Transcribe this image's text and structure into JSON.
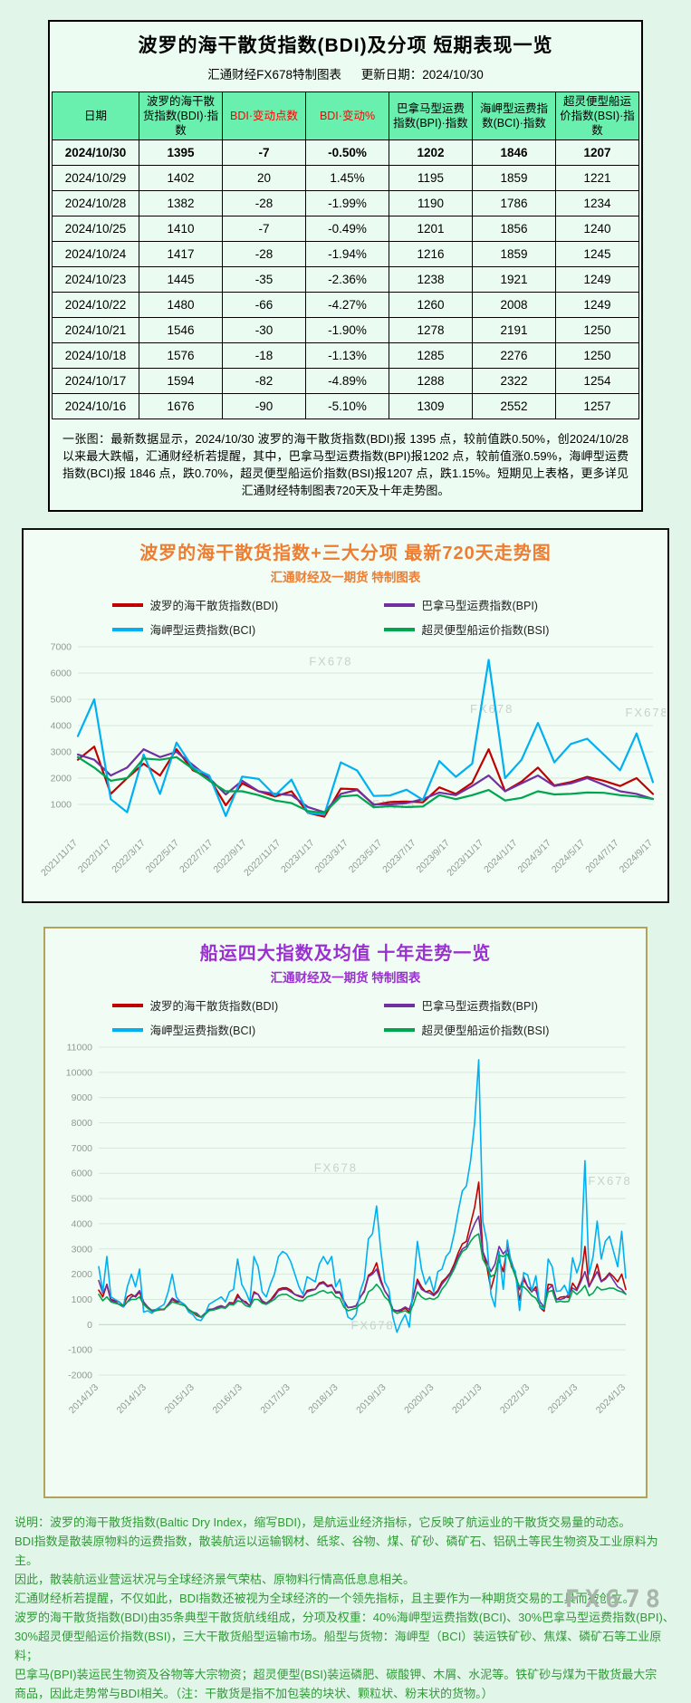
{
  "page": {
    "fx_logo": "FX678"
  },
  "table_panel": {
    "title": "波罗的海干散货指数(BDI)及分项 短期表现一览",
    "source": "汇通财经FX678特制图表",
    "updated": "更新日期：2024/10/30",
    "headers": [
      "日期",
      "波罗的海干散货指数(BDI)·指数",
      "BDI·变动点数",
      "BDI·变动%",
      "巴拿马型运费指数(BPI)·指数",
      "海岬型运费指数(BCI)·指数",
      "超灵便型船运价指数(BSI)·指数"
    ],
    "header_red_cols": [
      2,
      3
    ],
    "rows": [
      [
        "2024/10/30",
        "1395",
        "-7",
        "-0.50%",
        "1202",
        "1846",
        "1207"
      ],
      [
        "2024/10/29",
        "1402",
        "20",
        "1.45%",
        "1195",
        "1859",
        "1221"
      ],
      [
        "2024/10/28",
        "1382",
        "-28",
        "-1.99%",
        "1190",
        "1786",
        "1234"
      ],
      [
        "2024/10/25",
        "1410",
        "-7",
        "-0.49%",
        "1201",
        "1856",
        "1240"
      ],
      [
        "2024/10/24",
        "1417",
        "-28",
        "-1.94%",
        "1216",
        "1859",
        "1245"
      ],
      [
        "2024/10/23",
        "1445",
        "-35",
        "-2.36%",
        "1238",
        "1921",
        "1249"
      ],
      [
        "2024/10/22",
        "1480",
        "-66",
        "-4.27%",
        "1260",
        "2008",
        "1249"
      ],
      [
        "2024/10/21",
        "1546",
        "-30",
        "-1.90%",
        "1278",
        "2191",
        "1250"
      ],
      [
        "2024/10/18",
        "1576",
        "-18",
        "-1.13%",
        "1285",
        "2276",
        "1250"
      ],
      [
        "2024/10/17",
        "1594",
        "-82",
        "-4.89%",
        "1288",
        "2322",
        "1254"
      ],
      [
        "2024/10/16",
        "1676",
        "-90",
        "-5.10%",
        "1309",
        "2552",
        "1257"
      ]
    ],
    "summary": "一张图：最新数据显示，2024/10/30 波罗的海干散货指数(BDI)报 1395 点，较前值跌0.50%，创2024/10/28以来最大跌幅，汇通财经析若提醒，其中，巴拿马型运费指数(BPI)报1202 点，较前值涨0.59%，海岬型运费指数(BCI)报 1846 点，跌0.70%，超灵便型船运价指数(BSI)报1207 点，跌1.15%。短期见上表格，更多详见汇通财经特制图表720天及十年走势图。"
  },
  "chart_data": [
    {
      "type": "line",
      "title": "波罗的海干散货指数+三大分项  最新720天走势图",
      "subtitle": "汇通财经及一期货 特制图表",
      "title_color": "#ed7d31",
      "watermark": "FX678",
      "watermarks": [
        [
          0.44,
          0.1
        ],
        [
          0.72,
          0.36
        ],
        [
          0.99,
          0.38
        ],
        [
          0.55,
          0.88
        ]
      ],
      "ylim": [
        0,
        7000
      ],
      "y_ticks": [
        1000,
        2000,
        3000,
        4000,
        5000,
        6000,
        7000
      ],
      "x_labels": [
        "2021/11/17",
        "2022/1/17",
        "2022/3/17",
        "2022/5/17",
        "2022/7/17",
        "2022/9/17",
        "2022/11/17",
        "2023/1/17",
        "2023/3/17",
        "2023/5/17",
        "2023/7/17",
        "2023/9/17",
        "2023/11/17",
        "2024/1/17",
        "2024/3/17",
        "2024/5/17",
        "2024/7/17",
        "2024/9/17"
      ],
      "legend_position": "top",
      "grid": true,
      "series": [
        {
          "name": "波罗的海干散货指数(BDI)",
          "color": "#c00000",
          "values": [
            2700,
            3200,
            1400,
            2000,
            2550,
            2100,
            3100,
            2300,
            2000,
            965,
            1800,
            1500,
            1300,
            1500,
            680,
            530,
            1600,
            1576,
            980,
            1090,
            1110,
            1080,
            1650,
            1400,
            1820,
            3100,
            1500,
            1870,
            2400,
            1720,
            1850,
            2050,
            1900,
            1700,
            2000,
            1395
          ]
        },
        {
          "name": "巴拿马型运费指数(BPI)",
          "color": "#7030a0",
          "values": [
            2900,
            2700,
            2100,
            2400,
            3100,
            2800,
            3000,
            2500,
            2000,
            1380,
            1900,
            1500,
            1400,
            1350,
            900,
            700,
            1400,
            1550,
            1000,
            1000,
            1050,
            1200,
            1450,
            1350,
            1700,
            2100,
            1500,
            1800,
            2100,
            1700,
            1800,
            2000,
            1750,
            1500,
            1400,
            1202
          ]
        },
        {
          "name": "海岬型运费指数(BCI)",
          "color": "#00b0f0",
          "values": [
            3600,
            5000,
            1200,
            700,
            2900,
            1400,
            3350,
            2400,
            2100,
            560,
            2060,
            1970,
            1340,
            1940,
            680,
            610,
            2600,
            2290,
            1320,
            1340,
            1560,
            1170,
            2650,
            2050,
            2550,
            6500,
            2000,
            2700,
            4100,
            2600,
            3300,
            3500,
            2900,
            2300,
            3700,
            1846
          ]
        },
        {
          "name": "超灵便型船运价指数(BSI)",
          "color": "#00a550",
          "values": [
            2800,
            2400,
            1900,
            2000,
            2750,
            2700,
            2800,
            2350,
            1900,
            1500,
            1500,
            1350,
            1150,
            1050,
            750,
            680,
            1300,
            1350,
            890,
            930,
            900,
            920,
            1350,
            1200,
            1350,
            1550,
            1150,
            1250,
            1500,
            1380,
            1400,
            1450,
            1440,
            1350,
            1300,
            1207
          ]
        }
      ]
    },
    {
      "type": "line",
      "title": "船运四大指数及均值 十年走势一览",
      "subtitle": "汇通财经及一期货 特制图表",
      "title_color": "#9b30d0",
      "watermark": "FX678",
      "watermarks": [
        [
          0.45,
          0.38
        ],
        [
          0.97,
          0.42
        ],
        [
          0.52,
          0.86
        ]
      ],
      "ylim": [
        -2000,
        11000
      ],
      "y_ticks": [
        -2000,
        -1000,
        0,
        1000,
        2000,
        3000,
        4000,
        5000,
        6000,
        7000,
        8000,
        9000,
        10000,
        11000
      ],
      "x_labels": [
        "2014/1/3",
        "2014/1/3",
        "2015/1/3",
        "2016/1/3",
        "2017/1/3",
        "2018/1/3",
        "2019/1/3",
        "2020/1/3",
        "2021/1/3",
        "2022/1/3",
        "2023/1/3",
        "2024/1/3"
      ],
      "legend_position": "top",
      "grid": true,
      "series": [
        {
          "name": "波罗的海干散货指数(BDI)",
          "color": "#c00000",
          "values": [
            1370,
            1100,
            1600,
            1000,
            950,
            900,
            750,
            1100,
            1200,
            1100,
            1300,
            800,
            700,
            560,
            580,
            590,
            600,
            800,
            1000,
            900,
            890,
            790,
            580,
            480,
            360,
            290,
            400,
            600,
            620,
            660,
            720,
            680,
            875,
            850,
            1200,
            960,
            910,
            740,
            1300,
            1200,
            900,
            850,
            970,
            1180,
            1400,
            1460,
            1460,
            1370,
            1190,
            1120,
            1070,
            1350,
            1390,
            1400,
            1650,
            1700,
            1540,
            1580,
            1250,
            1270,
            900,
            680,
            690,
            740,
            1070,
            1350,
            1950,
            2080,
            2450,
            1800,
            1340,
            1090,
            570,
            530,
            550,
            650,
            500,
            1100,
            1800,
            1500,
            1300,
            1350,
            1200,
            1360,
            1700,
            1850,
            2050,
            2400,
            2850,
            3200,
            3300,
            4000,
            4650,
            5650,
            2900,
            2300,
            1400,
            2000,
            2550,
            2100,
            3100,
            2300,
            2000,
            965,
            1800,
            1500,
            1300,
            1500,
            680,
            530,
            1600,
            1576,
            980,
            1090,
            1110,
            1080,
            1650,
            1400,
            1820,
            3100,
            1500,
            1870,
            2400,
            1720,
            1850,
            2050,
            1900,
            1700,
            2000,
            1395
          ]
        },
        {
          "name": "巴拿马型运费指数(BPI)",
          "color": "#7030a0",
          "values": [
            1750,
            1250,
            1550,
            950,
            900,
            800,
            700,
            900,
            1100,
            1150,
            1350,
            900,
            700,
            560,
            600,
            620,
            600,
            800,
            1050,
            950,
            900,
            800,
            600,
            500,
            450,
            300,
            450,
            600,
            620,
            700,
            750,
            680,
            850,
            800,
            1100,
            1000,
            850,
            750,
            1250,
            1200,
            950,
            850,
            950,
            1100,
            1350,
            1400,
            1400,
            1300,
            1200,
            1150,
            1100,
            1300,
            1350,
            1400,
            1600,
            1650,
            1500,
            1550,
            1300,
            1300,
            950,
            680,
            700,
            750,
            1100,
            1300,
            1900,
            2000,
            2200,
            1700,
            1350,
            1100,
            600,
            550,
            600,
            700,
            600,
            1100,
            1700,
            1400,
            1300,
            1250,
            1150,
            1300,
            1600,
            1800,
            2000,
            2300,
            2700,
            3000,
            3100,
            3600,
            4000,
            4300,
            2900,
            2500,
            2100,
            2400,
            3100,
            2800,
            3000,
            2500,
            2000,
            1380,
            1900,
            1500,
            1400,
            1350,
            900,
            700,
            1400,
            1550,
            1000,
            1000,
            1050,
            1200,
            1450,
            1350,
            1700,
            2100,
            1500,
            1800,
            2100,
            1700,
            1800,
            2000,
            1750,
            1500,
            1400,
            1202
          ]
        },
        {
          "name": "海岬型运费指数(BCI)",
          "color": "#00b0f0",
          "values": [
            2300,
            1300,
            2700,
            1100,
            1000,
            900,
            700,
            1500,
            2000,
            1500,
            2200,
            500,
            550,
            450,
            600,
            700,
            800,
            1300,
            2000,
            1100,
            900,
            800,
            500,
            400,
            200,
            160,
            400,
            800,
            900,
            1000,
            1100,
            900,
            1300,
            1400,
            2600,
            1600,
            1300,
            900,
            2700,
            2300,
            1300,
            1100,
            1600,
            2000,
            2700,
            2900,
            2800,
            2500,
            2000,
            1500,
            1200,
            1900,
            1800,
            1700,
            2400,
            2700,
            2400,
            2700,
            1500,
            1800,
            900,
            300,
            200,
            400,
            1300,
            1800,
            3400,
            3600,
            4700,
            3000,
            1700,
            1400,
            300,
            -300,
            100,
            400,
            -100,
            1500,
            3300,
            2200,
            1600,
            1900,
            1300,
            2100,
            2200,
            2700,
            2900,
            3600,
            4500,
            5300,
            5500,
            6500,
            8000,
            10500,
            4100,
            3300,
            1200,
            700,
            2900,
            1400,
            3350,
            2400,
            2100,
            560,
            2060,
            1970,
            1340,
            1940,
            680,
            610,
            2600,
            2290,
            1320,
            1340,
            1560,
            1170,
            2650,
            2050,
            2550,
            6500,
            2000,
            2700,
            4100,
            2600,
            3300,
            3500,
            2900,
            2300,
            3700,
            1846
          ]
        },
        {
          "name": "超灵便型船运价指数(BSI)",
          "color": "#00a550",
          "values": [
            1200,
            950,
            1100,
            900,
            850,
            800,
            750,
            900,
            1000,
            1000,
            1100,
            800,
            650,
            520,
            550,
            600,
            620,
            750,
            900,
            850,
            800,
            750,
            600,
            500,
            400,
            300,
            400,
            550,
            580,
            620,
            680,
            650,
            800,
            780,
            950,
            900,
            750,
            700,
            1000,
            1000,
            850,
            800,
            900,
            1000,
            1150,
            1200,
            1200,
            1100,
            1000,
            950,
            950,
            1100,
            1150,
            1200,
            1300,
            1350,
            1250,
            1300,
            1100,
            1050,
            700,
            550,
            600,
            650,
            800,
            900,
            1300,
            1400,
            1600,
            1400,
            1100,
            950,
            550,
            450,
            500,
            550,
            450,
            800,
            1300,
            1100,
            1000,
            1050,
            1000,
            1100,
            1400,
            1600,
            1900,
            2200,
            2600,
            2900,
            3000,
            3300,
            3500,
            3600,
            2600,
            2300,
            1900,
            2000,
            2750,
            2700,
            2800,
            2350,
            1900,
            1500,
            1500,
            1350,
            1150,
            1050,
            750,
            680,
            1300,
            1350,
            890,
            930,
            900,
            920,
            1350,
            1200,
            1350,
            1550,
            1150,
            1250,
            1500,
            1380,
            1400,
            1450,
            1440,
            1350,
            1300,
            1207
          ]
        }
      ]
    }
  ],
  "notes": {
    "lines": [
      "说明：波罗的海干散货指数(Baltic Dry Index，缩写BDI)，是航运业经济指标，它反映了航运业的干散货交易量的动态。",
      "BDI指数是散装原物料的运费指数，散装航运以运输钢材、纸浆、谷物、煤、矿砂、磷矿石、铝矾土等民生物资及工业原料为主。",
      "因此，散装航运业营运状况与全球经济景气荣枯、原物料行情高低息息相关。",
      "汇通财经析若提醒，不仅如此，BDI指数还被视为全球经济的一个领先指标，且主要作为一种期货交易的工具而被创立。",
      "波罗的海干散货指数(BDI)由35条典型干散货航线组成，分项及权重：40%海岬型运费指数(BCI)、30%巴拿马型运费指数(BPI)、",
      "30%超灵便型船运价指数(BSI)，三大干散货船型运输市场。船型与货物：海岬型（BCI）装运铁矿砂、焦煤、磷矿石等工业原料；",
      "巴拿马(BPI)装运民生物资及谷物等大宗物资；超灵便型(BSI)装运磷肥、碳酸钾、木屑、水泥等。铁矿砂与煤为干散货最大宗",
      "商品，因此走势常与BDI相关。（注：干散货是指不加包装的块状、颗粒状、粉末状的货物。）"
    ]
  }
}
